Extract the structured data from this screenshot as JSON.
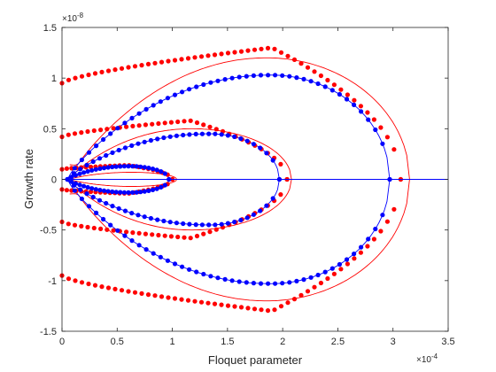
{
  "chart_data": {
    "type": "scatter",
    "xlabel": "Floquet parameter",
    "ylabel": "Growth rate",
    "x_multiplier": "×10",
    "x_exponent": "-4",
    "y_multiplier": "×10",
    "y_exponent": "-8",
    "xlim": [
      0,
      3.5
    ],
    "ylim": [
      -1.5,
      1.5
    ],
    "xticks": [
      "0",
      "0.5",
      "1",
      "1.5",
      "2",
      "2.5",
      "3",
      "3.5"
    ],
    "yticks": [
      "-1.5",
      "-1",
      "-0.5",
      "0",
      "0.5",
      "1",
      "1.5"
    ],
    "grid": false,
    "colors": {
      "red": "#ff0000",
      "blue": "#0000ff",
      "axis": "#262626"
    },
    "loops": [
      {
        "color": "#ff0000",
        "kind": "curve",
        "cusp": 0.07,
        "tip": 3.15,
        "amp": 1.2,
        "peak": 0.58,
        "plat": 0.12
      },
      {
        "color": "#ff0000",
        "kind": "curve",
        "cusp": 0.07,
        "tip": 2.08,
        "amp": 0.5,
        "peak": 0.55,
        "plat": 0.04
      },
      {
        "color": "#ff0000",
        "kind": "curve",
        "cusp": 0.07,
        "tip": 1.04,
        "amp": 0.07,
        "peak": 0.58,
        "plat": 0
      },
      {
        "color": "#0000ff",
        "kind": "curve",
        "cusp": 0.05,
        "tip": 2.97,
        "amp": 1.03,
        "peak": 0.63,
        "plat": 0
      },
      {
        "color": "#0000ff",
        "kind": "curve",
        "cusp": 0.05,
        "tip": 1.97,
        "amp": 0.45,
        "peak": 0.67,
        "plat": 0
      },
      {
        "color": "#0000ff",
        "kind": "curve",
        "cusp": 0.05,
        "tip": 0.97,
        "amp": 0.13,
        "peak": 0.6,
        "plat": 0
      },
      {
        "color": "#ff0000",
        "kind": "dots",
        "cusp": 0,
        "tip": 3.07,
        "amp": 1.3,
        "y0": 0.95,
        "peak": 0.62,
        "plat": 0.05,
        "n": 52
      },
      {
        "color": "#ff0000",
        "kind": "dots",
        "cusp": 0,
        "tip": 2.04,
        "amp": 0.58,
        "y0": 0.42,
        "peak": 0.57,
        "plat": 0.05,
        "n": 36
      },
      {
        "color": "#ff0000",
        "kind": "dots",
        "cusp": 0,
        "tip": 1.0,
        "amp": 0.14,
        "y0": 0.1,
        "peak": 0.6,
        "plat": 0.05,
        "n": 24
      },
      {
        "color": "#0000ff",
        "kind": "dots",
        "cusp": 0.05,
        "tip": 2.97,
        "amp": 1.03,
        "peak": 0.63,
        "plat": 0,
        "n": 46
      },
      {
        "color": "#0000ff",
        "kind": "dots",
        "cusp": 0.05,
        "tip": 1.97,
        "amp": 0.45,
        "peak": 0.67,
        "plat": 0,
        "n": 34
      },
      {
        "color": "#0000ff",
        "kind": "dots",
        "cusp": 0.05,
        "tip": 0.97,
        "amp": 0.13,
        "peak": 0.6,
        "plat": 0,
        "n": 26
      }
    ],
    "baseline": {
      "color": "#0000ff",
      "y": 0,
      "x": [
        0,
        3.5
      ]
    }
  }
}
